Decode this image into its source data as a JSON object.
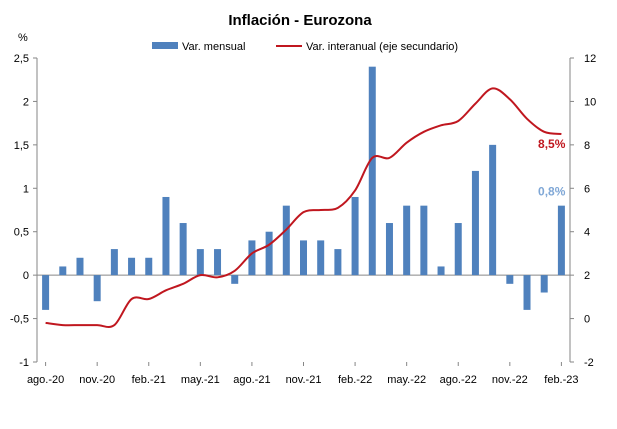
{
  "chart_data": {
    "type": "bar+line",
    "title": "Inflación - Eurozona",
    "ylabel_left": "%",
    "ylim_left": [
      -1,
      2.5
    ],
    "yticks_left": [
      "-1",
      "-0,5",
      "0",
      "0,5",
      "1",
      "1,5",
      "2",
      "2,5"
    ],
    "ylim_right": [
      -2,
      12
    ],
    "yticks_right": [
      "-2",
      "0",
      "2",
      "4",
      "6",
      "8",
      "10",
      "12"
    ],
    "x_ticks": [
      "ago.-20",
      "nov.-20",
      "feb.-21",
      "may.-21",
      "ago.-21",
      "nov.-21",
      "feb.-22",
      "may.-22",
      "ago.-22",
      "nov.-22",
      "feb.-23"
    ],
    "legend_position": "top",
    "months": [
      "ago.-20",
      "sep.-20",
      "oct.-20",
      "nov.-20",
      "dic.-20",
      "ene.-21",
      "feb.-21",
      "mar.-21",
      "abr.-21",
      "may.-21",
      "jun.-21",
      "jul.-21",
      "ago.-21",
      "sep.-21",
      "oct.-21",
      "nov.-21",
      "dic.-21",
      "ene.-22",
      "feb.-22",
      "mar.-22",
      "abr.-22",
      "may.-22",
      "jun.-22",
      "jul.-22",
      "ago.-22",
      "sep.-22",
      "oct.-22",
      "nov.-22",
      "dic.-22",
      "ene.-23",
      "feb.-23"
    ],
    "series": [
      {
        "name": "Var. mensual",
        "type": "bar",
        "axis": "left",
        "color": "#4f81bd",
        "values": [
          -0.4,
          0.1,
          0.2,
          -0.3,
          0.3,
          0.2,
          0.2,
          0.9,
          0.6,
          0.3,
          0.3,
          -0.1,
          0.4,
          0.5,
          0.8,
          0.4,
          0.4,
          0.3,
          0.9,
          2.4,
          0.6,
          0.8,
          0.8,
          0.1,
          0.6,
          1.2,
          1.5,
          -0.1,
          -0.4,
          -0.2,
          0.8
        ]
      },
      {
        "name": "Var. interanual (eje secundario)",
        "type": "line",
        "axis": "right",
        "color": "#c0171f",
        "values": [
          -0.2,
          -0.3,
          -0.3,
          -0.3,
          -0.3,
          0.9,
          0.9,
          1.3,
          1.6,
          2.0,
          1.9,
          2.2,
          3.0,
          3.4,
          4.1,
          4.9,
          5.0,
          5.1,
          5.9,
          7.4,
          7.4,
          8.1,
          8.6,
          8.9,
          9.1,
          9.9,
          10.6,
          10.1,
          9.2,
          8.6,
          8.5
        ]
      }
    ],
    "annotations": [
      {
        "text": "8,5%",
        "series": "Var. interanual (eje secundario)",
        "index": 30,
        "color": "#c0171f"
      },
      {
        "text": "0,8%",
        "series": "Var. mensual",
        "index": 30,
        "color": "#7fa7d6"
      }
    ]
  }
}
